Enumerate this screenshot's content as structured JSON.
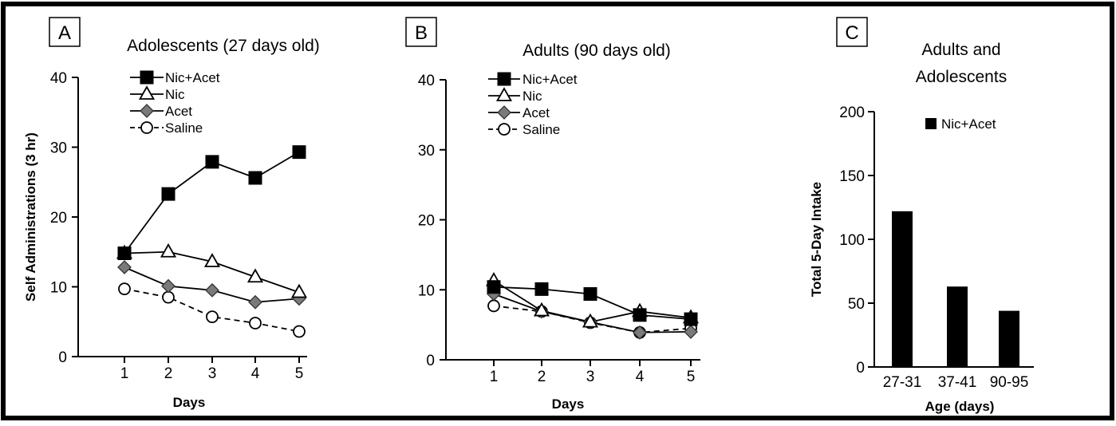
{
  "chart_data": [
    {
      "panel": "A",
      "type": "line",
      "title": "Adolescents (27 days old)",
      "xlabel": "Days",
      "ylabel": "Self Administrations (3 hr)",
      "x": [
        1,
        2,
        3,
        4,
        5
      ],
      "xticks": [
        "1",
        "2",
        "3",
        "4",
        "5"
      ],
      "yticks": [
        "0",
        "10",
        "20",
        "30",
        "40"
      ],
      "ylim": [
        0,
        40
      ],
      "series": [
        {
          "name": "Nic+Acet",
          "marker": "filled-square",
          "dash": "solid",
          "values": [
            14.8,
            23.3,
            27.9,
            25.6,
            29.3
          ]
        },
        {
          "name": "Nic",
          "marker": "open-triangle",
          "dash": "solid",
          "values": [
            14.8,
            15.0,
            13.6,
            11.4,
            9.2
          ]
        },
        {
          "name": "Acet",
          "marker": "gray-diamond",
          "dash": "solid",
          "values": [
            12.8,
            10.1,
            9.5,
            7.8,
            8.3
          ]
        },
        {
          "name": "Saline",
          "marker": "open-circle",
          "dash": "dashed",
          "values": [
            9.7,
            8.5,
            5.7,
            4.8,
            3.6
          ]
        }
      ],
      "legend": "top-left"
    },
    {
      "panel": "B",
      "type": "line",
      "title": "Adults (90 days old)",
      "xlabel": "Days",
      "ylabel": "",
      "x": [
        1,
        2,
        3,
        4,
        5
      ],
      "xticks": [
        "1",
        "2",
        "3",
        "4",
        "5"
      ],
      "yticks": [
        "0",
        "10",
        "20",
        "30",
        "40"
      ],
      "ylim": [
        0,
        40
      ],
      "series": [
        {
          "name": "Nic+Acet",
          "marker": "filled-square",
          "dash": "solid",
          "values": [
            10.4,
            10.1,
            9.4,
            6.4,
            5.8
          ]
        },
        {
          "name": "Nic",
          "marker": "open-triangle",
          "dash": "solid",
          "values": [
            11.3,
            7.0,
            5.4,
            6.9,
            6.0
          ]
        },
        {
          "name": "Acet",
          "marker": "gray-diamond",
          "dash": "solid",
          "values": [
            9.4,
            6.9,
            5.4,
            3.9,
            4.0
          ]
        },
        {
          "name": "Saline",
          "marker": "open-circle",
          "dash": "dashed",
          "values": [
            7.7,
            6.9,
            5.3,
            3.9,
            4.5
          ]
        }
      ],
      "legend": "top-left"
    },
    {
      "panel": "C",
      "type": "bar",
      "title_lines": [
        "Adults and",
        "Adolescents"
      ],
      "xlabel": "Age (days)",
      "ylabel": "Total 5-Day Intake",
      "categories": [
        "27-31",
        "37-41",
        "90-95"
      ],
      "yticks": [
        "0",
        "50",
        "100",
        "150",
        "200"
      ],
      "ylim": [
        0,
        200
      ],
      "series": [
        {
          "name": "Nic+Acet",
          "values": [
            122,
            63,
            44
          ]
        }
      ],
      "legend": "top-right"
    }
  ],
  "colors": {
    "background": "#ffffff",
    "frame": "#000000",
    "line": "#000000",
    "diamond_fill": "#7a7a7a",
    "bar_fill": "#000000"
  }
}
